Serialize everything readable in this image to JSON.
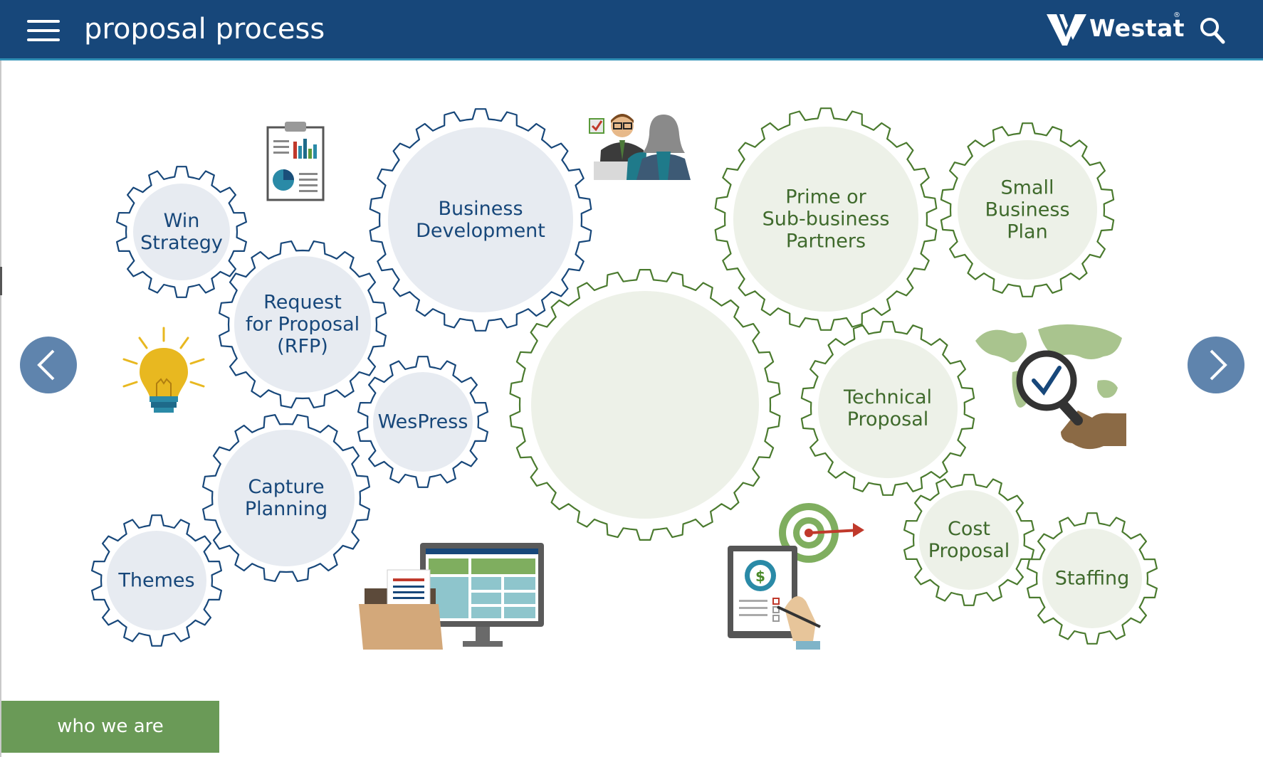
{
  "header": {
    "title": "proposal process",
    "brand": "Westat",
    "brand_mark": "®",
    "menu_icon": "hamburger-menu-icon",
    "search_icon": "search-icon"
  },
  "colors": {
    "header_bg": "#17477a",
    "blue_gear_stroke": "#17477a",
    "blue_gear_fill": "#e7ebf1",
    "green_gear_stroke": "#4a7a2e",
    "green_gear_fill": "#edf1e8",
    "button_green": "#6a9a57",
    "arrow_bg": "#5f84ad"
  },
  "gears": {
    "win_strategy": [
      "Win",
      "Strategy"
    ],
    "rfp": [
      "Request",
      "for Proposal",
      "(RFP)"
    ],
    "business_development": [
      "Business",
      "Development"
    ],
    "wespress": [
      "WesPress"
    ],
    "capture_planning": [
      "Capture",
      "Planning"
    ],
    "themes": [
      "Themes"
    ],
    "prime_partners": [
      "Prime or",
      "Sub-business",
      "Partners"
    ],
    "small_business_plan": [
      "Small",
      "Business",
      "Plan"
    ],
    "technical_proposal": [
      "Technical",
      "Proposal"
    ],
    "cost_proposal": [
      "Cost",
      "Proposal"
    ],
    "staffing": [
      "Staffing"
    ]
  },
  "nav": {
    "prev_icon": "chevron-left-icon",
    "next_icon": "chevron-right-icon"
  },
  "footer": {
    "who_we_are": "who we are"
  }
}
